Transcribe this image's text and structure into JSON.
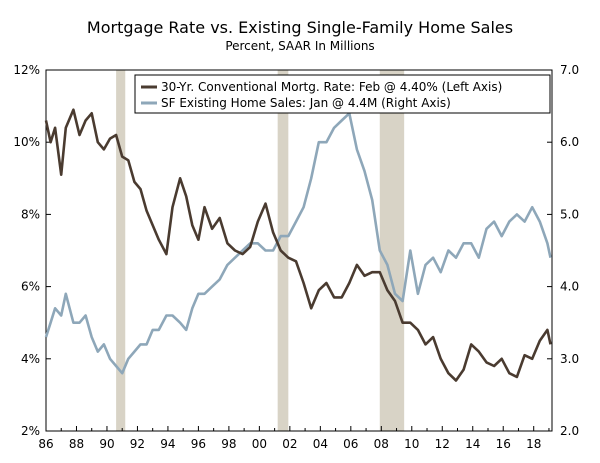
{
  "chart_data": {
    "type": "line",
    "title": "Mortgage Rate vs. Existing Single-Family Home Sales",
    "subtitle": "Percent, SAAR In Millions",
    "legend_position": "top-right",
    "x_ticks": [
      "86",
      "88",
      "90",
      "92",
      "94",
      "96",
      "98",
      "00",
      "02",
      "04",
      "06",
      "08",
      "10",
      "12",
      "14",
      "16",
      "18"
    ],
    "xlim": [
      1986,
      2019.2
    ],
    "left_axis": {
      "ticks": [
        "2%",
        "4%",
        "6%",
        "8%",
        "10%",
        "12%"
      ],
      "ylim": [
        2,
        12
      ]
    },
    "right_axis": {
      "ticks": [
        "2.0",
        "3.0",
        "4.0",
        "5.0",
        "6.0",
        "7.0"
      ],
      "ylim": [
        2,
        7
      ]
    },
    "recessions": [
      [
        1990.6,
        1991.2
      ],
      [
        2001.2,
        2001.9
      ],
      [
        2007.9,
        2009.5
      ]
    ],
    "series": [
      {
        "name": "30-Yr. Conventional Mortg. Rate: Feb @ 4.40% (Left Axis)",
        "axis": "left",
        "color": "#4a3b30",
        "x": [
          1986.0,
          1986.3,
          1986.6,
          1987.0,
          1987.3,
          1987.8,
          1988.2,
          1988.6,
          1989.0,
          1989.4,
          1989.8,
          1990.2,
          1990.6,
          1991.0,
          1991.4,
          1991.8,
          1992.2,
          1992.6,
          1993.0,
          1993.4,
          1993.9,
          1994.3,
          1994.8,
          1995.2,
          1995.6,
          1996.0,
          1996.4,
          1996.9,
          1997.4,
          1997.9,
          1998.4,
          1998.9,
          1999.4,
          1999.9,
          2000.4,
          2000.9,
          2001.4,
          2001.9,
          2002.4,
          2002.9,
          2003.4,
          2003.9,
          2004.4,
          2004.9,
          2005.4,
          2005.9,
          2006.4,
          2006.9,
          2007.4,
          2007.9,
          2008.4,
          2008.9,
          2009.4,
          2009.9,
          2010.4,
          2010.9,
          2011.4,
          2011.9,
          2012.4,
          2012.9,
          2013.4,
          2013.9,
          2014.4,
          2014.9,
          2015.4,
          2015.9,
          2016.4,
          2016.9,
          2017.4,
          2017.9,
          2018.4,
          2018.9,
          2019.1
        ],
        "values": [
          10.6,
          10.0,
          10.4,
          9.1,
          10.4,
          10.9,
          10.2,
          10.6,
          10.8,
          10.0,
          9.8,
          10.1,
          10.2,
          9.6,
          9.5,
          8.9,
          8.7,
          8.1,
          7.7,
          7.3,
          6.9,
          8.2,
          9.0,
          8.5,
          7.7,
          7.3,
          8.2,
          7.6,
          7.9,
          7.2,
          7.0,
          6.9,
          7.1,
          7.8,
          8.3,
          7.5,
          7.0,
          6.8,
          6.7,
          6.1,
          5.4,
          5.9,
          6.1,
          5.7,
          5.7,
          6.1,
          6.6,
          6.3,
          6.4,
          6.4,
          5.9,
          5.6,
          5.0,
          5.0,
          4.8,
          4.4,
          4.6,
          4.0,
          3.6,
          3.4,
          3.7,
          4.4,
          4.2,
          3.9,
          3.8,
          4.0,
          3.6,
          3.5,
          4.1,
          4.0,
          4.5,
          4.8,
          4.4
        ]
      },
      {
        "name": "SF Existing Home Sales: Jan @ 4.4M (Right Axis)",
        "axis": "right",
        "color": "#8ea7b9",
        "x": [
          1986.0,
          1986.3,
          1986.6,
          1987.0,
          1987.3,
          1987.8,
          1988.2,
          1988.6,
          1989.0,
          1989.4,
          1989.8,
          1990.2,
          1990.6,
          1991.0,
          1991.4,
          1991.8,
          1992.2,
          1992.6,
          1993.0,
          1993.4,
          1993.9,
          1994.3,
          1994.8,
          1995.2,
          1995.6,
          1996.0,
          1996.4,
          1996.9,
          1997.4,
          1997.9,
          1998.4,
          1998.9,
          1999.4,
          1999.9,
          2000.4,
          2000.9,
          2001.4,
          2001.9,
          2002.4,
          2002.9,
          2003.4,
          2003.9,
          2004.4,
          2004.9,
          2005.4,
          2005.9,
          2006.4,
          2006.9,
          2007.4,
          2007.9,
          2008.4,
          2008.9,
          2009.4,
          2009.9,
          2010.4,
          2010.9,
          2011.4,
          2011.9,
          2012.4,
          2012.9,
          2013.4,
          2013.9,
          2014.4,
          2014.9,
          2015.4,
          2015.9,
          2016.4,
          2016.9,
          2017.4,
          2017.9,
          2018.4,
          2018.9,
          2019.1
        ],
        "values": [
          3.3,
          3.5,
          3.7,
          3.6,
          3.9,
          3.5,
          3.5,
          3.6,
          3.3,
          3.1,
          3.2,
          3.0,
          2.9,
          2.8,
          3.0,
          3.1,
          3.2,
          3.2,
          3.4,
          3.4,
          3.6,
          3.6,
          3.5,
          3.4,
          3.7,
          3.9,
          3.9,
          4.0,
          4.1,
          4.3,
          4.4,
          4.5,
          4.6,
          4.6,
          4.5,
          4.5,
          4.7,
          4.7,
          4.9,
          5.1,
          5.5,
          6.0,
          6.0,
          6.2,
          6.3,
          6.4,
          5.9,
          5.6,
          5.2,
          4.5,
          4.3,
          3.9,
          3.8,
          4.5,
          3.9,
          4.3,
          4.4,
          4.2,
          4.5,
          4.4,
          4.6,
          4.6,
          4.4,
          4.8,
          4.9,
          4.7,
          4.9,
          5.0,
          4.9,
          5.1,
          4.9,
          4.6,
          4.4
        ]
      }
    ]
  }
}
